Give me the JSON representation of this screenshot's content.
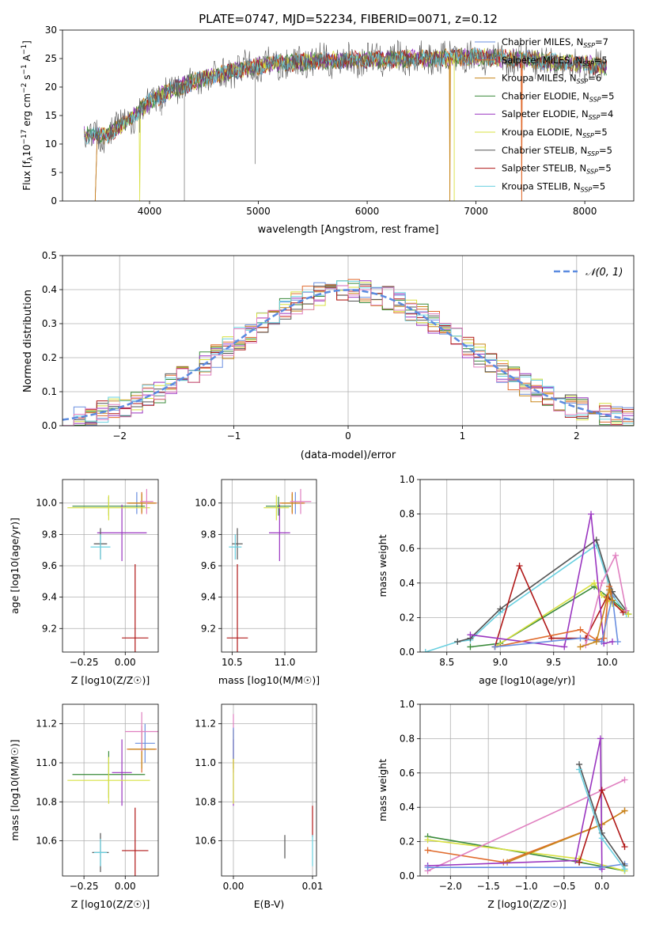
{
  "figure_title": "PLATE=0747, MJD=52234, FIBERID=0071, z=0.12",
  "colors": {
    "Chabrier MILES": "#6a8fe0",
    "Salpeter MILES": "#e06a2c",
    "Kroupa MILES": "#c8861a",
    "Chabrier ELODIE": "#3a8a3a",
    "Salpeter ELODIE": "#9a35c0",
    "Kroupa ELODIE": "#d8e040",
    "Chabrier STELIB": "#555555",
    "Salpeter STELIB": "#b01818",
    "Kroupa STELIB": "#6ad0e0",
    "Pink": "#e080c0",
    "normal_curve": "#5b8be0"
  },
  "chart_data": [
    {
      "id": "spectrum",
      "type": "line",
      "title": "PLATE=0747, MJD=52234, FIBERID=0071, z=0.12",
      "xlabel": "wavelength [Angstrom, rest frame]",
      "ylabel": "Flux [f_λ10^-17 erg cm^-2 s^-1 A^-1]",
      "xlim": [
        3200,
        8450
      ],
      "ylim": [
        0,
        30
      ],
      "xticks": [
        4000,
        5000,
        6000,
        7000,
        8000
      ],
      "yticks": [
        0,
        5,
        10,
        15,
        20,
        25,
        30
      ],
      "legend_position": "top-right",
      "series": [
        {
          "name": "Chabrier MILES, N_SSP=7"
        },
        {
          "name": "Salpeter MILES, N_SSP=5"
        },
        {
          "name": "Kroupa MILES, N_SSP=6"
        },
        {
          "name": "Chabrier ELODIE, N_SSP=5"
        },
        {
          "name": "Salpeter ELODIE, N_SSP=4"
        },
        {
          "name": "Kroupa ELODIE, N_SSP=5"
        },
        {
          "name": "Chabrier STELIB, N_SSP=5"
        },
        {
          "name": "Salpeter STELIB, N_SSP=5"
        },
        {
          "name": "Kroupa STELIB, N_SSP=5"
        }
      ],
      "continuum": {
        "x": [
          3400,
          3600,
          3800,
          4000,
          4200,
          4500,
          4800,
          5100,
          5500,
          6000,
          6500,
          7000,
          7500,
          8000,
          8200
        ],
        "y": [
          11.5,
          11.5,
          14,
          17.5,
          19.5,
          21.5,
          23,
          24,
          24.5,
          24.8,
          25,
          25.3,
          24.8,
          24,
          23.5
        ]
      },
      "drops": [
        3520,
        3910,
        4320,
        4970,
        6760,
        6800,
        7420
      ]
    },
    {
      "id": "residuals",
      "type": "line",
      "xlabel": "(data-model)/error",
      "ylabel": "Normed distribution",
      "xlim": [
        -2.5,
        2.5
      ],
      "ylim": [
        0,
        0.5
      ],
      "xticks": [
        -2,
        -1,
        0,
        1,
        2
      ],
      "yticks": [
        0.0,
        0.1,
        0.2,
        0.3,
        0.4,
        0.5
      ],
      "grid": true,
      "legend": "𝒩(0, 1)",
      "legend_position": "top-right"
    },
    {
      "id": "age-vs-Z",
      "type": "scatter",
      "xlabel": "Z [log10(Z/Z☉)]",
      "ylabel": "age [log10(age/yr)]",
      "xlim": [
        -0.38,
        0.2
      ],
      "ylim": [
        9.05,
        10.15
      ],
      "xticks": [
        -0.25,
        0.0
      ],
      "yticks": [
        9.2,
        9.4,
        9.6,
        9.8,
        10.0
      ],
      "grid": true,
      "points": [
        {
          "c": "#6a8fe0",
          "x": 0.07,
          "y": 10.0,
          "ex": 0.05,
          "ey": 0.07
        },
        {
          "c": "#e06a2c",
          "x": 0.1,
          "y": 10.0,
          "ex": 0.09,
          "ey": 0.07
        },
        {
          "c": "#c8861a",
          "x": 0.1,
          "y": 10.0,
          "ex": 0.08,
          "ey": 0.06
        },
        {
          "c": "#3a8a3a",
          "x": -0.1,
          "y": 9.98,
          "ex": 0.22,
          "ey": 0.06
        },
        {
          "c": "#9a35c0",
          "x": -0.02,
          "y": 9.81,
          "ex": 0.15,
          "ey": 0.18
        },
        {
          "c": "#d8e040",
          "x": -0.1,
          "y": 9.97,
          "ex": 0.25,
          "ey": 0.08
        },
        {
          "c": "#555555",
          "x": -0.15,
          "y": 9.74,
          "ex": 0.04,
          "ey": 0.1
        },
        {
          "c": "#b01818",
          "x": 0.06,
          "y": 9.14,
          "ex": 0.08,
          "ey": 0.47
        },
        {
          "c": "#6ad0e0",
          "x": -0.15,
          "y": 9.72,
          "ex": 0.06,
          "ey": 0.08
        },
        {
          "c": "#e080c0",
          "x": 0.13,
          "y": 10.01,
          "ex": 0.04,
          "ey": 0.08
        }
      ]
    },
    {
      "id": "age-vs-mass",
      "type": "scatter",
      "xlabel": "mass [log10(M/M☉)]",
      "ylabel": "",
      "xlim": [
        10.4,
        11.3
      ],
      "ylim": [
        9.05,
        10.15
      ],
      "xticks": [
        10.5,
        11.0
      ],
      "yticks": [
        9.2,
        9.4,
        9.6,
        9.8,
        10.0
      ],
      "grid": true,
      "points": [
        {
          "c": "#6a8fe0",
          "x": 11.1,
          "y": 10.0,
          "ex": 0.08,
          "ey": 0.07
        },
        {
          "c": "#e06a2c",
          "x": 11.07,
          "y": 10.0,
          "ex": 0.12,
          "ey": 0.07
        },
        {
          "c": "#c8861a",
          "x": 11.07,
          "y": 10.0,
          "ex": 0.1,
          "ey": 0.06
        },
        {
          "c": "#3a8a3a",
          "x": 10.94,
          "y": 9.98,
          "ex": 0.12,
          "ey": 0.06
        },
        {
          "c": "#9a35c0",
          "x": 10.95,
          "y": 9.81,
          "ex": 0.1,
          "ey": 0.18
        },
        {
          "c": "#d8e040",
          "x": 10.92,
          "y": 9.97,
          "ex": 0.12,
          "ey": 0.08
        },
        {
          "c": "#555555",
          "x": 10.55,
          "y": 9.74,
          "ex": 0.05,
          "ey": 0.1
        },
        {
          "c": "#b01818",
          "x": 10.55,
          "y": 9.14,
          "ex": 0.1,
          "ey": 0.47
        },
        {
          "c": "#6ad0e0",
          "x": 10.53,
          "y": 9.72,
          "ex": 0.06,
          "ey": 0.08
        },
        {
          "c": "#e080c0",
          "x": 11.15,
          "y": 10.01,
          "ex": 0.1,
          "ey": 0.08
        }
      ]
    },
    {
      "id": "weight-vs-age",
      "type": "line",
      "xlabel": "age [log10(age/yr)]",
      "ylabel": "mass weight",
      "xlim": [
        8.25,
        10.25
      ],
      "ylim": [
        0.0,
        1.0
      ],
      "xticks": [
        8.5,
        9.0,
        9.5,
        10.0
      ],
      "yticks": [
        0.0,
        0.2,
        0.4,
        0.6,
        0.8,
        1.0
      ],
      "grid": true,
      "series": [
        {
          "c": "#6ad0e0",
          "x": [
            8.3,
            8.6,
            8.72,
            9.0,
            9.9,
            10.05,
            10.18
          ],
          "y": [
            0.0,
            0.06,
            0.07,
            0.23,
            0.62,
            0.33,
            0.22
          ]
        },
        {
          "c": "#555555",
          "x": [
            8.6,
            8.72,
            9.0,
            9.9,
            10.05,
            10.18
          ],
          "y": [
            0.06,
            0.08,
            0.25,
            0.65,
            0.35,
            0.24
          ]
        },
        {
          "c": "#3a8a3a",
          "x": [
            8.72,
            9.0,
            9.88,
            10.05,
            10.2
          ],
          "y": [
            0.03,
            0.05,
            0.38,
            0.3,
            0.22
          ]
        },
        {
          "c": "#d8e040",
          "x": [
            8.95,
            9.88,
            9.95,
            10.0,
            10.05,
            10.2
          ],
          "y": [
            0.03,
            0.4,
            0.33,
            0.3,
            0.28,
            0.22
          ]
        },
        {
          "c": "#b01818",
          "x": [
            8.95,
            9.18,
            9.48,
            9.8,
            10.0,
            10.15
          ],
          "y": [
            0.03,
            0.5,
            0.08,
            0.08,
            0.32,
            0.23
          ]
        },
        {
          "c": "#9a35c0",
          "x": [
            8.72,
            9.6,
            9.85,
            9.97,
            10.05
          ],
          "y": [
            0.1,
            0.03,
            0.8,
            0.05,
            0.06
          ]
        },
        {
          "c": "#e06a2c",
          "x": [
            8.95,
            9.75,
            9.9,
            9.97,
            10.02,
            10.05
          ],
          "y": [
            0.03,
            0.13,
            0.07,
            0.08,
            0.38,
            0.32
          ]
        },
        {
          "c": "#6a8fe0",
          "x": [
            8.95,
            9.75,
            9.95,
            10.05,
            10.1
          ],
          "y": [
            0.03,
            0.08,
            0.06,
            0.32,
            0.06
          ]
        },
        {
          "c": "#e080c0",
          "x": [
            9.8,
            9.95,
            10.08,
            10.18
          ],
          "y": [
            0.04,
            0.4,
            0.56,
            0.24
          ]
        },
        {
          "c": "#c8861a",
          "x": [
            9.75,
            9.9,
            10.02,
            10.05
          ],
          "y": [
            0.03,
            0.06,
            0.36,
            0.3
          ]
        }
      ]
    },
    {
      "id": "mass-vs-Z",
      "type": "scatter",
      "xlabel": "Z [log10(Z/Z☉)]",
      "ylabel": "mass [log10(M/M☉)]",
      "xlim": [
        -0.38,
        0.2
      ],
      "ylim": [
        10.42,
        11.3
      ],
      "xticks": [
        -0.25,
        0.0
      ],
      "yticks": [
        10.6,
        10.8,
        11.0,
        11.2
      ],
      "grid": true,
      "points": [
        {
          "c": "#6a8fe0",
          "x": 0.12,
          "y": 11.1,
          "ex": 0.06,
          "ey": 0.1
        },
        {
          "c": "#e06a2c",
          "x": 0.1,
          "y": 11.07,
          "ex": 0.09,
          "ey": 0.12
        },
        {
          "c": "#c8861a",
          "x": 0.1,
          "y": 11.07,
          "ex": 0.08,
          "ey": 0.1
        },
        {
          "c": "#3a8a3a",
          "x": -0.1,
          "y": 10.94,
          "ex": 0.22,
          "ey": 0.12
        },
        {
          "c": "#9a35c0",
          "x": -0.02,
          "y": 10.95,
          "ex": 0.06,
          "ey": 0.17
        },
        {
          "c": "#d8e040",
          "x": -0.1,
          "y": 10.91,
          "ex": 0.25,
          "ey": 0.12
        },
        {
          "c": "#555555",
          "x": -0.15,
          "y": 10.54,
          "ex": 0.05,
          "ey": 0.1
        },
        {
          "c": "#b01818",
          "x": 0.06,
          "y": 10.55,
          "ex": 0.08,
          "ey": 0.22
        },
        {
          "c": "#6ad0e0",
          "x": -0.15,
          "y": 10.54,
          "ex": 0.04,
          "ey": 0.07
        },
        {
          "c": "#e080c0",
          "x": 0.1,
          "y": 11.16,
          "ex": 0.1,
          "ey": 0.1
        }
      ]
    },
    {
      "id": "mass-vs-EBV",
      "type": "scatter",
      "xlabel": "E(B-V)",
      "ylabel": "",
      "xlim": [
        -0.0015,
        0.0105
      ],
      "ylim": [
        10.42,
        11.3
      ],
      "xticks": [
        0.0,
        0.01
      ],
      "yticks": [
        10.6,
        10.8,
        11.0,
        11.2
      ],
      "grid": true,
      "points": [
        {
          "c": "#e080c0",
          "x": 0.0,
          "y": 11.1,
          "ex": 0,
          "ey": 0.15
        },
        {
          "c": "#9a35c0",
          "x": 0.0,
          "y": 10.95,
          "ex": 0,
          "ey": 0.17
        },
        {
          "c": "#c8861a",
          "x": 0.0,
          "y": 11.07,
          "ex": 0,
          "ey": 0.1
        },
        {
          "c": "#d8e040",
          "x": 0.0,
          "y": 10.91,
          "ex": 0,
          "ey": 0.12
        },
        {
          "c": "#6a8fe0",
          "x": 0.0,
          "y": 11.1,
          "ex": 0,
          "ey": 0.08
        },
        {
          "c": "#555555",
          "x": 0.0065,
          "y": 10.57,
          "ex": 0,
          "ey": 0.06
        },
        {
          "c": "#b01818",
          "x": 0.01,
          "y": 10.7,
          "ex": 0,
          "ey": 0.08
        },
        {
          "c": "#6ad0e0",
          "x": 0.01,
          "y": 10.55,
          "ex": 0,
          "ey": 0.08
        }
      ]
    },
    {
      "id": "weight-vs-Z",
      "type": "line",
      "xlabel": "Z [log10(Z/Z☉)]",
      "ylabel": "mass weight",
      "xlim": [
        -2.4,
        0.42
      ],
      "ylim": [
        0.0,
        1.0
      ],
      "xticks": [
        -2.0,
        -1.5,
        -1.0,
        -0.5,
        0.0
      ],
      "yticks": [
        0.0,
        0.2,
        0.4,
        0.6,
        0.8,
        1.0
      ],
      "grid": true,
      "series": [
        {
          "c": "#3a8a3a",
          "x": [
            -2.3,
            -0.3,
            0.3
          ],
          "y": [
            0.23,
            0.08,
            0.03
          ]
        },
        {
          "c": "#d8e040",
          "x": [
            -2.3,
            -0.3,
            0.3
          ],
          "y": [
            0.21,
            0.1,
            0.03
          ]
        },
        {
          "c": "#e06a2c",
          "x": [
            -2.3,
            -1.3,
            0.0,
            0.3
          ],
          "y": [
            0.15,
            0.08,
            0.3,
            0.38
          ]
        },
        {
          "c": "#c8861a",
          "x": [
            -1.25,
            0.0,
            0.3
          ],
          "y": [
            0.08,
            0.3,
            0.38
          ]
        },
        {
          "c": "#e080c0",
          "x": [
            -2.3,
            0.3
          ],
          "y": [
            0.03,
            0.56
          ]
        },
        {
          "c": "#9a35c0",
          "x": [
            -2.3,
            -0.35,
            -0.02,
            0.0
          ],
          "y": [
            0.06,
            0.09,
            0.8,
            0.04
          ]
        },
        {
          "c": "#6a8fe0",
          "x": [
            -2.3,
            -0.02,
            0.3
          ],
          "y": [
            0.05,
            0.05,
            0.07
          ]
        },
        {
          "c": "#b01818",
          "x": [
            -0.3,
            0.0,
            0.3
          ],
          "y": [
            0.08,
            0.5,
            0.17
          ]
        },
        {
          "c": "#555555",
          "x": [
            -0.3,
            0.0,
            0.3
          ],
          "y": [
            0.65,
            0.25,
            0.06
          ]
        },
        {
          "c": "#6ad0e0",
          "x": [
            -0.3,
            0.0,
            0.3
          ],
          "y": [
            0.62,
            0.22,
            0.04
          ]
        }
      ]
    }
  ]
}
